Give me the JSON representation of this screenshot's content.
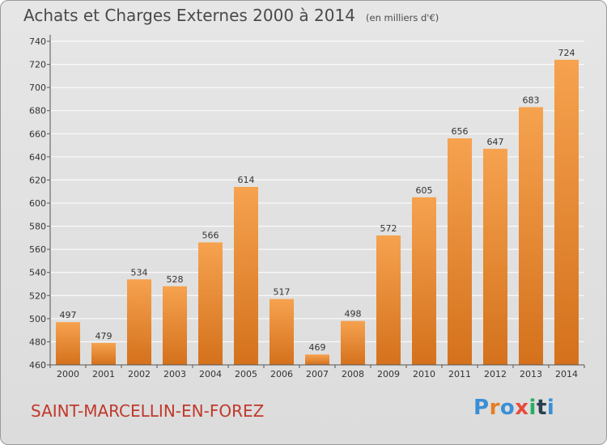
{
  "header": {
    "title": "Achats et Charges Externes 2000 à 2014",
    "subtitle": "(en milliers d'€)"
  },
  "footer": {
    "commune": "SAINT-MARCELLIN-EN-FOREZ",
    "logo_letters": [
      "P",
      "r",
      "o",
      "x",
      "i",
      "t",
      "i"
    ],
    "logo_colors": [
      "#3a8fd6",
      "#e67e22",
      "#3a8fd6",
      "#e74c3c",
      "#27ae60",
      "#2c3e50",
      "#3a8fd6"
    ]
  },
  "colors": {
    "bar_top": "#f6a24f",
    "bar_bottom": "#d4711c",
    "axis": "#555555",
    "grid": "#ffffff",
    "text": "#333333"
  },
  "chart_data": {
    "type": "bar",
    "title": "Achats et Charges Externes 2000 à 2014",
    "subtitle": "(en milliers d'€)",
    "categories": [
      "2000",
      "2001",
      "2002",
      "2003",
      "2004",
      "2005",
      "2006",
      "2007",
      "2008",
      "2009",
      "2010",
      "2011",
      "2012",
      "2013",
      "2014"
    ],
    "values": [
      497,
      479,
      534,
      528,
      566,
      614,
      517,
      469,
      498,
      572,
      605,
      656,
      647,
      683,
      724
    ],
    "ylim": [
      460,
      740
    ],
    "yticks": [
      460,
      480,
      500,
      520,
      540,
      560,
      580,
      600,
      620,
      640,
      660,
      680,
      700,
      720,
      740
    ],
    "grid": true,
    "xlabel": "",
    "ylabel": ""
  }
}
